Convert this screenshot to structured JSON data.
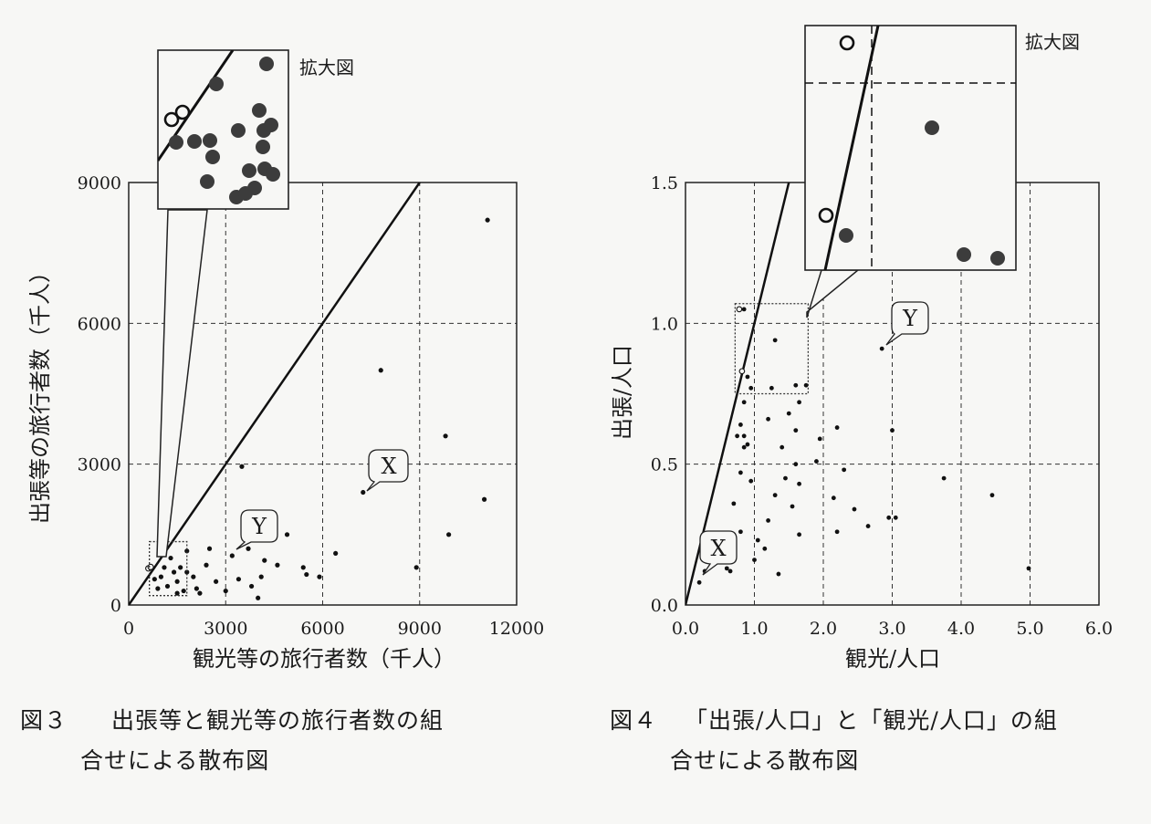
{
  "figures": [
    {
      "caption_num": "図３",
      "caption_line1": "出張等と観光等の旅行者数の組",
      "caption_line2": "合せによる散布図"
    },
    {
      "caption_num": "図４",
      "caption_line1": "「出張/人口」と「観光/人口」の組",
      "caption_line2": "合せによる散布図"
    }
  ],
  "chart_data": [
    {
      "type": "scatter",
      "xlabel": "観光等の旅行者数（千人）",
      "ylabel": "出張等の旅行者数（千人）",
      "xlim": [
        0,
        12000
      ],
      "ylim": [
        0,
        9000
      ],
      "xticks": [
        0,
        3000,
        6000,
        9000,
        12000
      ],
      "yticks": [
        0,
        3000,
        6000,
        9000
      ],
      "grid": "dashed",
      "reference_line": {
        "from": [
          0,
          0
        ],
        "to": [
          9000,
          9000
        ]
      },
      "callouts": [
        {
          "label": "X",
          "point": [
            7250,
            2400
          ]
        },
        {
          "label": "Y",
          "point": [
            3200,
            1050
          ]
        }
      ],
      "inset_label": "拡大図",
      "points": [
        [
          11100,
          8200
        ],
        [
          7800,
          5000
        ],
        [
          9800,
          3600
        ],
        [
          11000,
          2250
        ],
        [
          9900,
          1500
        ],
        [
          8900,
          800
        ],
        [
          3500,
          2950
        ],
        [
          7250,
          2400
        ],
        [
          4900,
          1500
        ],
        [
          6400,
          1100
        ],
        [
          3200,
          1050
        ],
        [
          3700,
          1200
        ],
        [
          4200,
          950
        ],
        [
          4600,
          850
        ],
        [
          5400,
          800
        ],
        [
          5900,
          600
        ],
        [
          5500,
          650
        ],
        [
          4100,
          600
        ],
        [
          3400,
          550
        ],
        [
          3800,
          400
        ],
        [
          4000,
          150
        ],
        [
          3000,
          300
        ],
        [
          2700,
          500
        ],
        [
          2400,
          850
        ],
        [
          2200,
          250
        ],
        [
          2500,
          1200
        ],
        [
          2000,
          600
        ],
        [
          1800,
          1150
        ],
        [
          2100,
          350
        ],
        [
          1500,
          500
        ],
        [
          1200,
          400
        ],
        [
          1700,
          300
        ],
        [
          1400,
          700
        ],
        [
          1000,
          600
        ],
        [
          900,
          350
        ],
        [
          1600,
          800
        ],
        [
          1300,
          1000
        ],
        [
          1100,
          800
        ],
        [
          800,
          550
        ],
        [
          1500,
          250
        ],
        [
          1800,
          700
        ]
      ],
      "open_points": [
        [
          610,
          780
        ],
        [
          680,
          810
        ]
      ]
    },
    {
      "type": "scatter",
      "xlabel": "観光/人口",
      "ylabel": "出張/人口",
      "xlim": [
        0,
        6
      ],
      "ylim": [
        0,
        1.5
      ],
      "xticks": [
        "0.0",
        "1.0",
        "2.0",
        "3.0",
        "4.0",
        "5.0",
        "6.0"
      ],
      "yticks": [
        "0.0",
        "0.5",
        "1.0",
        "1.5"
      ],
      "grid": "dashed",
      "reference_line": {
        "from": [
          0,
          0
        ],
        "to": [
          1.5,
          1.5
        ]
      },
      "callouts": [
        {
          "label": "X",
          "point": [
            0.28,
            0.12
          ]
        },
        {
          "label": "Y",
          "point": [
            2.85,
            0.91
          ]
        }
      ],
      "inset_label": "拡大図",
      "points": [
        [
          0.85,
          1.05
        ],
        [
          1.3,
          0.94
        ],
        [
          2.85,
          0.91
        ],
        [
          0.9,
          0.81
        ],
        [
          1.6,
          0.78
        ],
        [
          1.75,
          0.78
        ],
        [
          0.95,
          0.77
        ],
        [
          1.25,
          0.77
        ],
        [
          0.85,
          0.72
        ],
        [
          1.65,
          0.72
        ],
        [
          1.5,
          0.68
        ],
        [
          1.2,
          0.66
        ],
        [
          0.8,
          0.64
        ],
        [
          1.6,
          0.62
        ],
        [
          2.2,
          0.63
        ],
        [
          3.0,
          0.62
        ],
        [
          0.75,
          0.6
        ],
        [
          0.85,
          0.6
        ],
        [
          1.95,
          0.59
        ],
        [
          0.85,
          0.56
        ],
        [
          0.9,
          0.57
        ],
        [
          1.4,
          0.56
        ],
        [
          1.9,
          0.51
        ],
        [
          1.6,
          0.5
        ],
        [
          2.3,
          0.48
        ],
        [
          0.8,
          0.47
        ],
        [
          1.45,
          0.45
        ],
        [
          1.65,
          0.43
        ],
        [
          0.95,
          0.44
        ],
        [
          3.75,
          0.45
        ],
        [
          1.3,
          0.39
        ],
        [
          2.15,
          0.38
        ],
        [
          4.45,
          0.39
        ],
        [
          0.7,
          0.36
        ],
        [
          1.55,
          0.35
        ],
        [
          2.45,
          0.34
        ],
        [
          1.2,
          0.3
        ],
        [
          2.65,
          0.28
        ],
        [
          2.95,
          0.31
        ],
        [
          3.05,
          0.31
        ],
        [
          0.8,
          0.26
        ],
        [
          2.2,
          0.26
        ],
        [
          1.65,
          0.25
        ],
        [
          1.05,
          0.23
        ],
        [
          1.15,
          0.2
        ],
        [
          1.0,
          0.16
        ],
        [
          0.65,
          0.12
        ],
        [
          1.35,
          0.11
        ],
        [
          0.6,
          0.13
        ],
        [
          0.28,
          0.12
        ],
        [
          0.2,
          0.08
        ],
        [
          4.98,
          0.13
        ]
      ],
      "open_points": [
        [
          0.78,
          1.05
        ],
        [
          0.82,
          0.83
        ]
      ]
    }
  ]
}
